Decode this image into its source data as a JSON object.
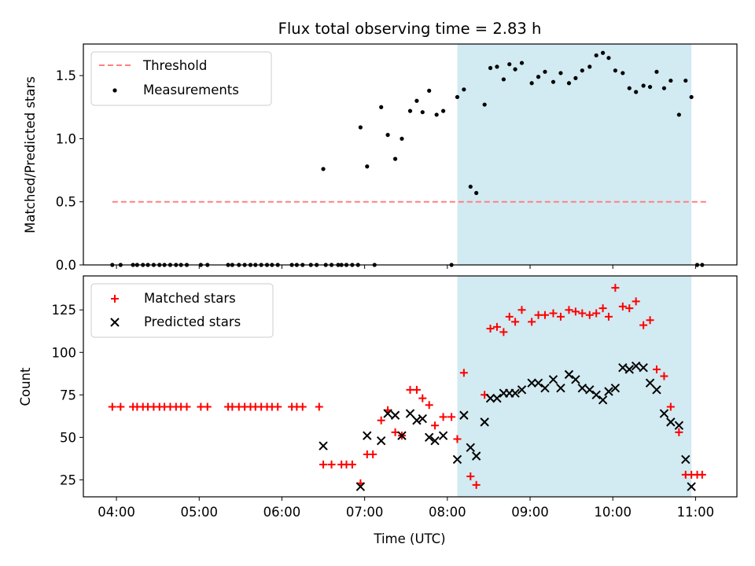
{
  "title": "Flux total observing time = 2.83 h",
  "colors": {
    "threshold": "#ff8080",
    "measurement": "#000000",
    "matched": "#ff0000",
    "predicted": "#000000",
    "observing_window": "#add8e6"
  },
  "chart_data": [
    {
      "type": "scatter",
      "ylabel": "Matched/Predicted stars",
      "xlabel": "",
      "ylim": [
        0,
        1.75
      ],
      "yticks": [
        0.0,
        0.5,
        1.0,
        1.5
      ],
      "ytick_labels": [
        "0.0",
        "0.5",
        "1.0",
        "1.5"
      ],
      "x_unit": "hours UTC",
      "xlim": [
        3.6,
        11.5
      ],
      "legend_position": "top-left",
      "shaded_window": [
        8.12,
        10.95
      ],
      "threshold": {
        "name": "Threshold",
        "value": 0.5,
        "x_range": [
          3.95,
          11.15
        ]
      },
      "series": [
        {
          "name": "Measurements",
          "x": [
            3.95,
            4.05,
            4.2,
            4.25,
            4.32,
            4.38,
            4.45,
            4.52,
            4.58,
            4.65,
            4.72,
            4.78,
            4.85,
            5.02,
            5.1,
            5.35,
            5.4,
            5.48,
            5.55,
            5.62,
            5.68,
            5.75,
            5.82,
            5.88,
            5.95,
            6.12,
            6.18,
            6.25,
            6.35,
            6.42,
            6.5,
            6.53,
            6.6,
            6.68,
            6.72,
            6.78,
            6.85,
            6.92,
            6.95,
            7.03,
            7.12,
            7.2,
            7.28,
            7.37,
            7.45,
            7.55,
            7.63,
            7.7,
            7.78,
            7.87,
            7.95,
            8.05,
            8.12,
            8.2,
            8.28,
            8.35,
            8.45,
            8.52,
            8.6,
            8.68,
            8.75,
            8.82,
            8.9,
            9.02,
            9.1,
            9.18,
            9.28,
            9.37,
            9.47,
            9.55,
            9.63,
            9.72,
            9.8,
            9.88,
            9.95,
            10.03,
            10.12,
            10.2,
            10.28,
            10.37,
            10.45,
            10.53,
            10.62,
            10.7,
            10.8,
            10.88,
            10.95,
            11.02,
            11.08
          ],
          "y": [
            0,
            0,
            0,
            0,
            0,
            0,
            0,
            0,
            0,
            0,
            0,
            0,
            0,
            0,
            0,
            0,
            0,
            0,
            0,
            0,
            0,
            0,
            0,
            0,
            0,
            0,
            0,
            0,
            0,
            0,
            0.76,
            0,
            0,
            0,
            0,
            0,
            0,
            0,
            1.09,
            0.78,
            0,
            1.25,
            1.03,
            0.84,
            1.0,
            1.22,
            1.3,
            1.21,
            1.38,
            1.19,
            1.22,
            0,
            1.33,
            1.39,
            0.62,
            0.57,
            1.27,
            1.56,
            1.57,
            1.47,
            1.59,
            1.55,
            1.6,
            1.44,
            1.49,
            1.53,
            1.45,
            1.52,
            1.44,
            1.48,
            1.54,
            1.57,
            1.66,
            1.68,
            1.64,
            1.54,
            1.52,
            1.4,
            1.37,
            1.42,
            1.41,
            1.53,
            1.4,
            1.46,
            1.19,
            1.46,
            1.33,
            0,
            0
          ]
        }
      ]
    },
    {
      "type": "scatter",
      "xlabel": "Time (UTC)",
      "ylabel": "Count",
      "ylim": [
        15,
        145
      ],
      "yticks": [
        25,
        50,
        75,
        100,
        125
      ],
      "ytick_labels": [
        "25",
        "50",
        "75",
        "100",
        "125"
      ],
      "x_unit": "hours UTC",
      "xlim": [
        3.6,
        11.5
      ],
      "xticks": [
        4,
        5,
        6,
        7,
        8,
        9,
        10,
        11
      ],
      "xtick_labels": [
        "04:00",
        "05:00",
        "06:00",
        "07:00",
        "08:00",
        "09:00",
        "10:00",
        "11:00"
      ],
      "legend_position": "top-left",
      "shaded_window": [
        8.12,
        10.95
      ],
      "series": [
        {
          "name": "Matched stars",
          "x": [
            3.95,
            4.05,
            4.2,
            4.25,
            4.32,
            4.38,
            4.45,
            4.52,
            4.58,
            4.65,
            4.72,
            4.78,
            4.85,
            5.02,
            5.1,
            5.35,
            5.4,
            5.48,
            5.55,
            5.62,
            5.68,
            5.75,
            5.82,
            5.88,
            5.95,
            6.12,
            6.18,
            6.25,
            6.45,
            6.5,
            6.6,
            6.72,
            6.78,
            6.85,
            6.95,
            7.03,
            7.1,
            7.2,
            7.28,
            7.37,
            7.45,
            7.55,
            7.63,
            7.7,
            7.78,
            7.85,
            7.95,
            8.05,
            8.12,
            8.2,
            8.28,
            8.35,
            8.45,
            8.52,
            8.6,
            8.68,
            8.75,
            8.82,
            8.9,
            9.02,
            9.1,
            9.18,
            9.28,
            9.37,
            9.47,
            9.55,
            9.63,
            9.72,
            9.8,
            9.88,
            9.95,
            10.03,
            10.12,
            10.2,
            10.28,
            10.37,
            10.45,
            10.53,
            10.62,
            10.7,
            10.8,
            10.88,
            10.95,
            11.02,
            11.08
          ],
          "y": [
            68,
            68,
            68,
            68,
            68,
            68,
            68,
            68,
            68,
            68,
            68,
            68,
            68,
            68,
            68,
            68,
            68,
            68,
            68,
            68,
            68,
            68,
            68,
            68,
            68,
            68,
            68,
            68,
            68,
            34,
            34,
            34,
            34,
            34,
            23,
            40,
            40,
            60,
            66,
            53,
            51,
            78,
            78,
            73,
            69,
            57,
            62,
            62,
            49,
            88,
            27,
            22,
            75,
            114,
            115,
            112,
            121,
            118,
            125,
            118,
            122,
            122,
            123,
            121,
            125,
            124,
            123,
            122,
            123,
            126,
            121,
            138,
            127,
            126,
            130,
            116,
            119,
            90,
            86,
            68,
            53,
            28,
            28,
            28,
            28
          ],
          "partial_note": ""
        },
        {
          "name": "Predicted stars",
          "x": [
            6.5,
            6.95,
            7.03,
            7.2,
            7.28,
            7.37,
            7.45,
            7.55,
            7.63,
            7.7,
            7.78,
            7.85,
            7.95,
            8.12,
            8.2,
            8.28,
            8.35,
            8.45,
            8.52,
            8.6,
            8.68,
            8.75,
            8.82,
            8.9,
            9.02,
            9.1,
            9.18,
            9.28,
            9.37,
            9.47,
            9.55,
            9.63,
            9.72,
            9.8,
            9.88,
            9.95,
            10.03,
            10.12,
            10.2,
            10.28,
            10.37,
            10.45,
            10.53,
            10.62,
            10.7,
            10.8,
            10.88,
            10.95
          ],
          "y": [
            45,
            21,
            51,
            48,
            64,
            63,
            51,
            64,
            60,
            61,
            50,
            48,
            51,
            37,
            63,
            44,
            39,
            59,
            73,
            73,
            76,
            76,
            76,
            78,
            82,
            82,
            79,
            84,
            79,
            87,
            84,
            79,
            78,
            75,
            72,
            77,
            79,
            91,
            90,
            92,
            91,
            82,
            78,
            64,
            59,
            57,
            37,
            21
          ]
        }
      ]
    }
  ]
}
